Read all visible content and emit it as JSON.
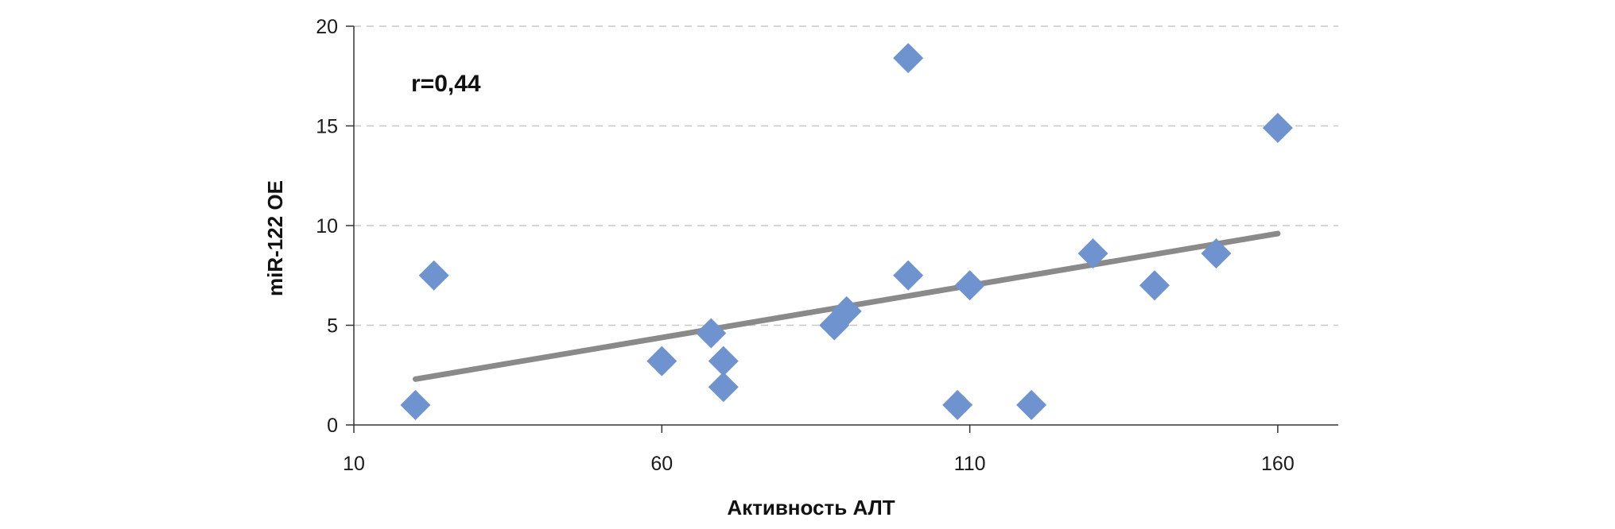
{
  "chart_data": {
    "type": "scatter",
    "title": "",
    "xlabel": "Активность АЛТ",
    "ylabel": "miR-122 ОЕ",
    "xlim": [
      10,
      170
    ],
    "ylim": [
      0,
      20
    ],
    "x_ticks": [
      "10",
      "60",
      "110",
      "160"
    ],
    "y_ticks": [
      "0",
      "5",
      "10",
      "15",
      "20"
    ],
    "grid": "horizontal-dashed",
    "annotation": "r=0,44",
    "points": [
      {
        "x": 20,
        "y": 1.0
      },
      {
        "x": 23,
        "y": 7.5
      },
      {
        "x": 60,
        "y": 3.2
      },
      {
        "x": 68,
        "y": 4.6
      },
      {
        "x": 70,
        "y": 3.2
      },
      {
        "x": 70,
        "y": 1.9
      },
      {
        "x": 88,
        "y": 5.0
      },
      {
        "x": 90,
        "y": 5.7
      },
      {
        "x": 100,
        "y": 18.4
      },
      {
        "x": 100,
        "y": 7.5
      },
      {
        "x": 108,
        "y": 1.0
      },
      {
        "x": 110,
        "y": 7.0
      },
      {
        "x": 120,
        "y": 1.0
      },
      {
        "x": 130,
        "y": 8.6
      },
      {
        "x": 140,
        "y": 7.0
      },
      {
        "x": 150,
        "y": 8.6
      },
      {
        "x": 160,
        "y": 14.9
      }
    ],
    "trendline": {
      "x": [
        20,
        160
      ],
      "y": [
        2.3,
        9.6
      ]
    },
    "colors": {
      "points": "#6f93cf",
      "trendline": "#8a8a8a",
      "grid": "#c8c8c8",
      "axis": "#333333"
    }
  }
}
